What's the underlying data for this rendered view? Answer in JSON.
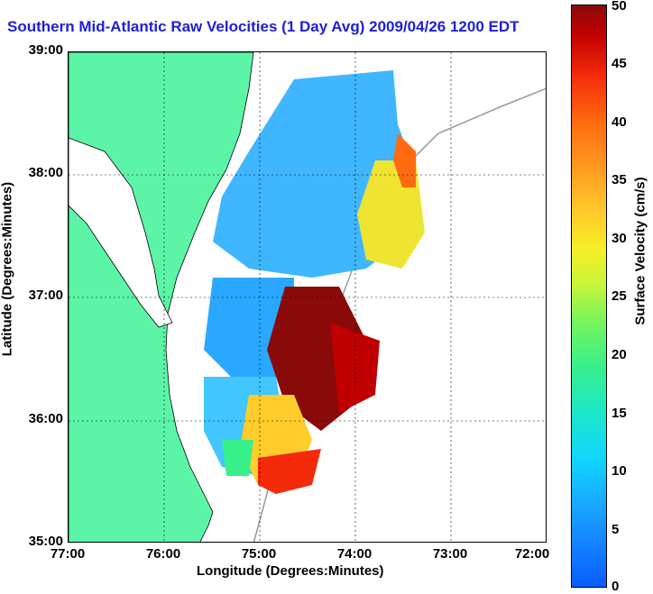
{
  "title": "Southern Mid-Atlantic Raw Velocities (1 Day Avg) 2009/04/26 1200 EDT",
  "x_axis": {
    "label": "Longitude (Degrees:Minutes)",
    "ticks": [
      "77:00",
      "76:00",
      "75:00",
      "74:00",
      "73:00",
      "72:00"
    ]
  },
  "y_axis": {
    "label": "Latitude (Degrees:Minutes)",
    "ticks": [
      "39:00",
      "38:00",
      "37:00",
      "36:00",
      "35:00"
    ]
  },
  "colorbar": {
    "label": "Surface Velocity (cm/s)",
    "ticks": [
      "50",
      "45",
      "40",
      "35",
      "30",
      "25",
      "20",
      "15",
      "10",
      "5",
      "0"
    ]
  },
  "colors": {
    "land": "#5cf5a8",
    "title": "#1f1fd6",
    "grid": "#000000"
  }
}
